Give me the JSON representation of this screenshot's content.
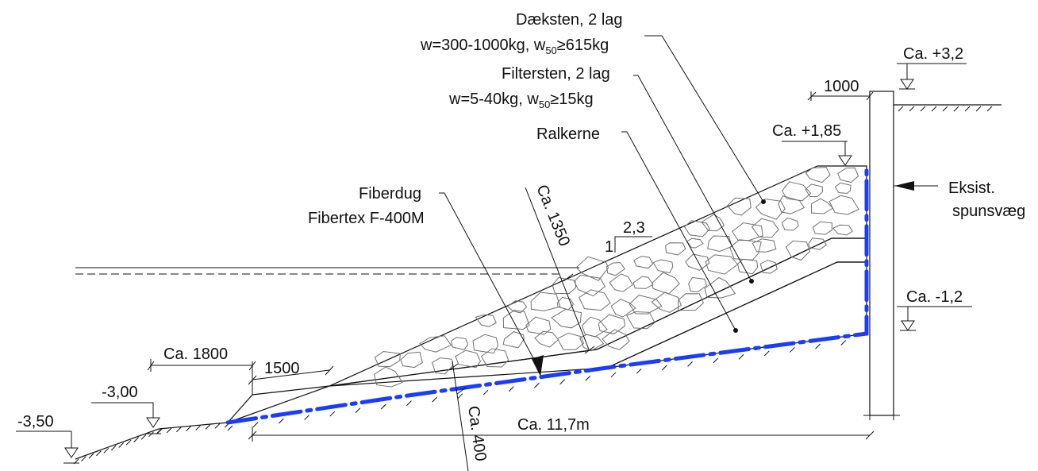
{
  "labels": {
    "daeksten_line1": "Dæksten, 2 lag",
    "daeksten_line2_prefix": "w=300-1000kg, w",
    "daeksten_line2_sub": "50",
    "daeksten_line2_suffix": "≥615kg",
    "filtersten_line1": "Filtersten, 2 lag",
    "filtersten_line2_prefix": "w=5-40kg, w",
    "filtersten_line2_sub": "50",
    "filtersten_line2_suffix": "≥15kg",
    "ralkerne": "Ralkerne",
    "fiberdug_line1": "Fiberdug",
    "fiberdug_line2": "Fibertex F-400M",
    "ca_1350": "Ca. 1350",
    "slope_h": "2,3",
    "slope_v": "1",
    "ca_1800": "Ca. 1800",
    "dim_1500": "1500",
    "ca_400": "Ca. 400",
    "ca_11_7m": "Ca. 11,7m",
    "dim_1000": "1000",
    "eksist_line1": "Eksist.",
    "eksist_line2": "spunsvæg"
  },
  "levels": {
    "ca_p3_2": "Ca. +3,2",
    "ca_p1_85": "Ca. +1,85",
    "ca_m1_2": "Ca. -1,2",
    "m3_00": "-3,00",
    "m3_50": "-3,50"
  },
  "colors": {
    "lines": "#111111",
    "geotextile": "#1a3cff",
    "stone_outline": "#6f6f6f",
    "core_fill": "#9a9a9a"
  }
}
